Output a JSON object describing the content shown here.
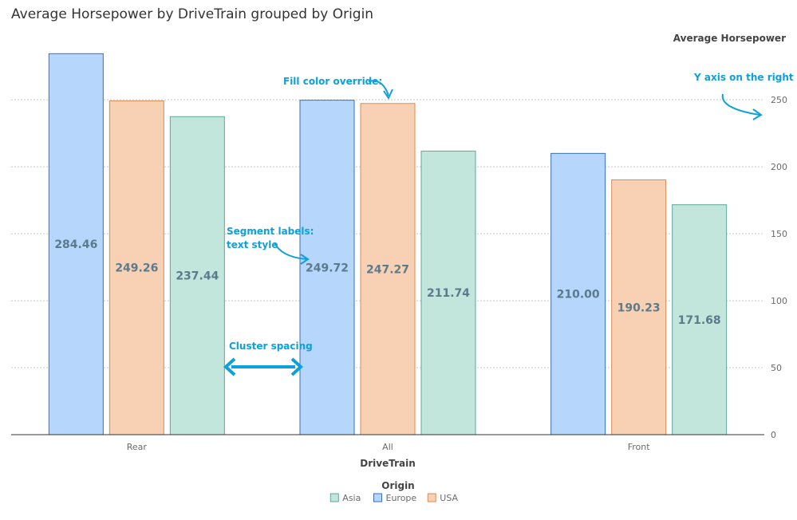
{
  "chart_data": {
    "type": "bar",
    "title": "Average Horsepower by DriveTrain grouped by Origin",
    "xlabel": "DriveTrain",
    "ylabel": "Average Horsepower",
    "y_axis_side": "right",
    "ylim": [
      0,
      290
    ],
    "yticks": [
      0,
      50,
      100,
      150,
      200,
      250
    ],
    "grid": true,
    "categories": [
      "Rear",
      "All",
      "Front"
    ],
    "series": [
      {
        "name": "Europe",
        "values": [
          284.46,
          249.72,
          210.0
        ],
        "labels": [
          "284.46",
          "249.72",
          "210.00"
        ],
        "fill": "#b6d6fb",
        "stroke": "#3a6fb6"
      },
      {
        "name": "USA",
        "values": [
          249.26,
          247.27,
          190.23
        ],
        "labels": [
          "249.26",
          "247.27",
          "190.23"
        ],
        "fill": "#f8d1b4",
        "stroke": "#d98a55"
      },
      {
        "name": "Asia",
        "values": [
          237.44,
          211.74,
          171.68
        ],
        "labels": [
          "237.44",
          "211.74",
          "171.68"
        ],
        "fill": "#c2e5dc",
        "stroke": "#5ea796"
      }
    ],
    "legend": {
      "title": "Origin",
      "position": "bottom",
      "entries": [
        {
          "name": "Asia",
          "color": "#c2e5dc",
          "stroke": "#5ea796"
        },
        {
          "name": "Europe",
          "color": "#b6d6fb",
          "stroke": "#3a6fb6"
        },
        {
          "name": "USA",
          "color": "#f8d1b4",
          "stroke": "#d98a55"
        }
      ]
    },
    "annotations": [
      "Fill color override:",
      "Y axis on the right",
      "Segment labels:",
      "text style",
      "Cluster spacing"
    ],
    "annotation_color": "#0ea0dc"
  }
}
